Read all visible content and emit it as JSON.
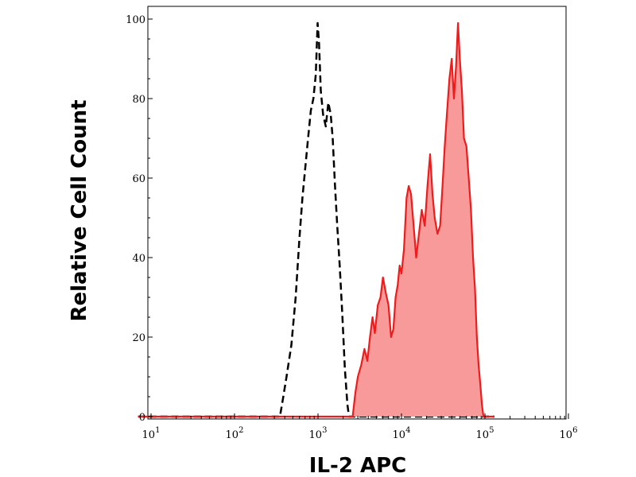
{
  "chart_data": {
    "type": "area",
    "xlabel": "IL-2 APC",
    "ylabel": "Relative Cell Count",
    "xscale": "log",
    "xlim": [
      7,
      130000
    ],
    "ylim": [
      0,
      105
    ],
    "grid": false,
    "legend": "none",
    "x_ticks": [
      {
        "value": 10,
        "base": "10",
        "exp": "1"
      },
      {
        "value": 100,
        "base": "10",
        "exp": "2"
      },
      {
        "value": 1000,
        "base": "10",
        "exp": "3"
      },
      {
        "value": 10000,
        "base": "10",
        "exp": "4"
      },
      {
        "value": 100000,
        "base": "10",
        "exp": "5"
      },
      {
        "value": 1000000,
        "base": "10",
        "exp": "6"
      }
    ],
    "y_ticks": [
      {
        "value": 0,
        "label": "0"
      },
      {
        "value": 20,
        "label": "20"
      },
      {
        "value": 40,
        "label": "40"
      },
      {
        "value": 60,
        "label": "60"
      },
      {
        "value": 80,
        "label": "80"
      },
      {
        "value": 100,
        "label": "100"
      }
    ],
    "series": [
      {
        "role": "isotype-control",
        "style": "dashed-outline",
        "color": "#000000",
        "points": [
          [
            7,
            0
          ],
          [
            350,
            0
          ],
          [
            370,
            3
          ],
          [
            420,
            10
          ],
          [
            480,
            18
          ],
          [
            540,
            30
          ],
          [
            600,
            45
          ],
          [
            650,
            55
          ],
          [
            700,
            62
          ],
          [
            760,
            70
          ],
          [
            820,
            77
          ],
          [
            880,
            80
          ],
          [
            940,
            86
          ],
          [
            990,
            99
          ],
          [
            1030,
            94
          ],
          [
            1080,
            82
          ],
          [
            1150,
            76
          ],
          [
            1240,
            73
          ],
          [
            1330,
            79
          ],
          [
            1420,
            76
          ],
          [
            1500,
            70
          ],
          [
            1600,
            58
          ],
          [
            1700,
            48
          ],
          [
            1820,
            38
          ],
          [
            1950,
            26
          ],
          [
            2100,
            12
          ],
          [
            2250,
            3
          ],
          [
            2350,
            0
          ],
          [
            130000,
            0
          ]
        ]
      },
      {
        "role": "IL-2 APC stained",
        "style": "filled",
        "color": "#ee1c1c",
        "fill": "#f89a9a",
        "points": [
          [
            7,
            0
          ],
          [
            2600,
            0
          ],
          [
            2800,
            6
          ],
          [
            3000,
            10
          ],
          [
            3300,
            13
          ],
          [
            3600,
            17
          ],
          [
            3900,
            14
          ],
          [
            4200,
            20
          ],
          [
            4500,
            25
          ],
          [
            4800,
            21
          ],
          [
            5200,
            28
          ],
          [
            5600,
            30
          ],
          [
            6000,
            35
          ],
          [
            6500,
            31
          ],
          [
            7000,
            28
          ],
          [
            7500,
            20
          ],
          [
            8000,
            22
          ],
          [
            8500,
            30
          ],
          [
            9000,
            33
          ],
          [
            9500,
            38
          ],
          [
            10000,
            36
          ],
          [
            10700,
            42
          ],
          [
            11500,
            55
          ],
          [
            12200,
            58
          ],
          [
            13000,
            56
          ],
          [
            14000,
            48
          ],
          [
            15000,
            40
          ],
          [
            16000,
            45
          ],
          [
            17500,
            52
          ],
          [
            19000,
            48
          ],
          [
            20500,
            58
          ],
          [
            22000,
            66
          ],
          [
            23500,
            56
          ],
          [
            25000,
            50
          ],
          [
            27000,
            46
          ],
          [
            29000,
            48
          ],
          [
            31000,
            58
          ],
          [
            33000,
            68
          ],
          [
            35000,
            76
          ],
          [
            37500,
            85
          ],
          [
            40000,
            90
          ],
          [
            42500,
            80
          ],
          [
            45000,
            88
          ],
          [
            47500,
            99
          ],
          [
            50000,
            90
          ],
          [
            53000,
            82
          ],
          [
            56000,
            70
          ],
          [
            60000,
            68
          ],
          [
            64000,
            60
          ],
          [
            68000,
            52
          ],
          [
            72000,
            40
          ],
          [
            76000,
            32
          ],
          [
            80000,
            20
          ],
          [
            84000,
            13
          ],
          [
            88000,
            8
          ],
          [
            92000,
            3
          ],
          [
            96000,
            0
          ],
          [
            130000,
            0
          ]
        ]
      }
    ]
  }
}
